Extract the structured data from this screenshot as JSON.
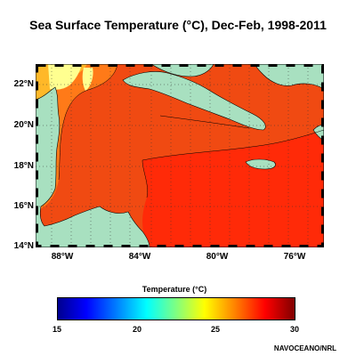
{
  "title": "Sea Surface Temperature (°C), Dec-Feb, 1998-2011",
  "latitude_labels": [
    "22°N",
    "20°N",
    "18°N",
    "16°N",
    "14°N"
  ],
  "longitude_labels": [
    "88°W",
    "84°W",
    "80°W",
    "76°W"
  ],
  "colorbar": {
    "label": "Temperature (°C)",
    "ticks": [
      "15",
      "20",
      "25",
      "30"
    ],
    "min": 15,
    "max": 30
  },
  "credit": "NAVOCEANO/NRL",
  "colors": {
    "land": "#a8e0c0",
    "sea_warm": "#f04a12",
    "sea_warmer": "#ff2a08",
    "shelf_cool": "#ff9a20",
    "shelf_cooler": "#ffd030",
    "coastal_pale": "#ffff90"
  }
}
